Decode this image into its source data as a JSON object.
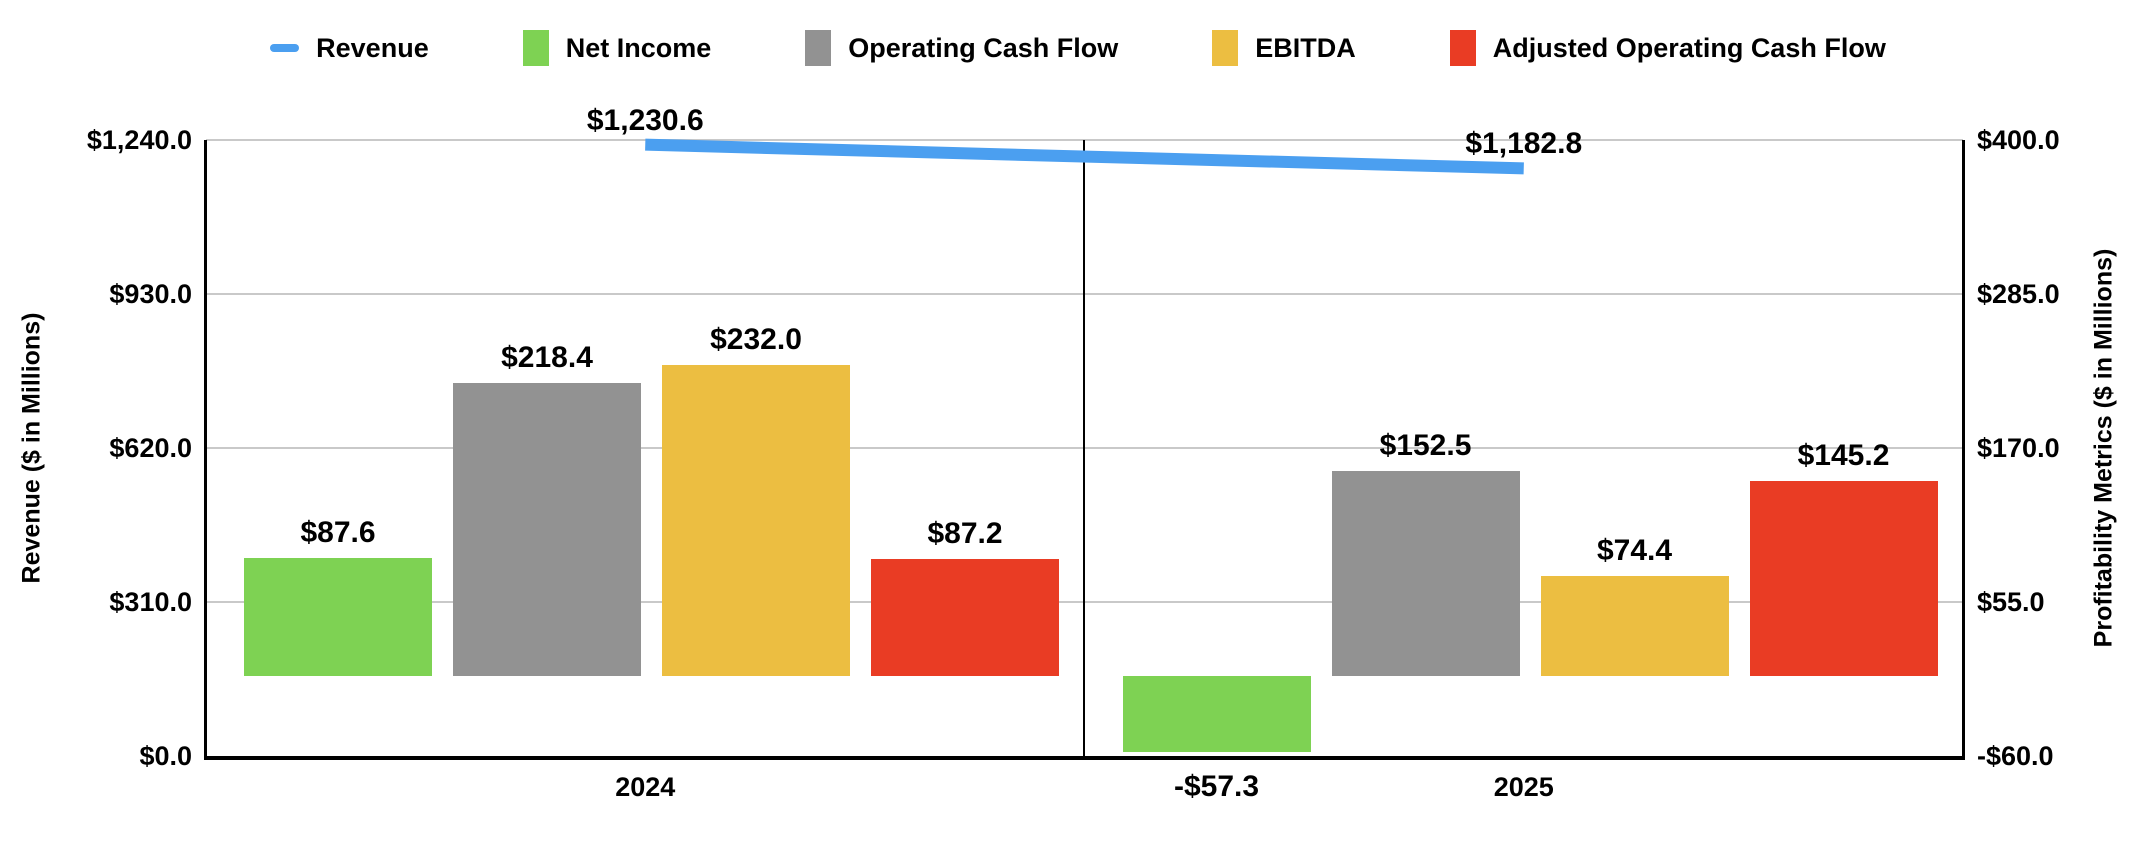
{
  "page": {
    "background": "#ffffff"
  },
  "chart_data": {
    "type": "combo",
    "subtype": "grouped-bar-with-line-dual-axis",
    "title": "",
    "categories": [
      "2024",
      "2025"
    ],
    "left_axis": {
      "title": "Revenue ($ in Millions)",
      "min": 0,
      "max": 1240,
      "ticks": [
        {
          "value": 0,
          "label": "$0.0"
        },
        {
          "value": 310,
          "label": "$310.0"
        },
        {
          "value": 620,
          "label": "$620.0"
        },
        {
          "value": 930,
          "label": "$930.0"
        },
        {
          "value": 1240,
          "label": "$1,240.0"
        }
      ]
    },
    "right_axis": {
      "title": "Profitability Metrics ($ in Millions)",
      "min": -60,
      "max": 400,
      "ticks": [
        {
          "value": -60,
          "label": "-$60.0"
        },
        {
          "value": 55,
          "label": "$55.0"
        },
        {
          "value": 170,
          "label": "$170.0"
        },
        {
          "value": 285,
          "label": "$285.0"
        },
        {
          "value": 400,
          "label": "$400.0"
        }
      ]
    },
    "line_series": {
      "name": "Revenue",
      "axis": "left",
      "color": "#4b9ff0",
      "values": [
        1230.6,
        1182.8
      ],
      "labels": [
        "$1,230.6",
        "$1,182.8"
      ]
    },
    "bar_series": [
      {
        "name": "Net Income",
        "axis": "right",
        "color": "#7ed253",
        "values": [
          87.6,
          -57.3
        ],
        "labels": [
          "$87.6",
          "-$57.3"
        ]
      },
      {
        "name": "Operating Cash Flow",
        "axis": "right",
        "color": "#929292",
        "values": [
          218.4,
          152.5
        ],
        "labels": [
          "$218.4",
          "$152.5"
        ]
      },
      {
        "name": "EBITDA",
        "axis": "right",
        "color": "#ecbe41",
        "values": [
          232.0,
          74.4
        ],
        "labels": [
          "$232.0",
          "$74.4"
        ]
      },
      {
        "name": "Adjusted Operating Cash Flow",
        "axis": "right",
        "color": "#e93c24",
        "values": [
          87.2,
          145.2
        ],
        "labels": [
          "$87.2",
          "$145.2"
        ]
      }
    ],
    "legend": {
      "position": "top",
      "items": [
        {
          "name": "Revenue",
          "color": "#4b9ff0",
          "marker": "line"
        },
        {
          "name": "Net Income",
          "color": "#7ed253",
          "marker": "square"
        },
        {
          "name": "Operating Cash Flow",
          "color": "#929292",
          "marker": "square"
        },
        {
          "name": "EBITDA",
          "color": "#ecbe41",
          "marker": "square"
        },
        {
          "name": "Adjusted Operating Cash Flow",
          "color": "#e93c24",
          "marker": "square"
        }
      ]
    },
    "grid": true,
    "grid_color": "#c9c9c9",
    "axis_color": "#000000",
    "divider_between_categories": true
  }
}
